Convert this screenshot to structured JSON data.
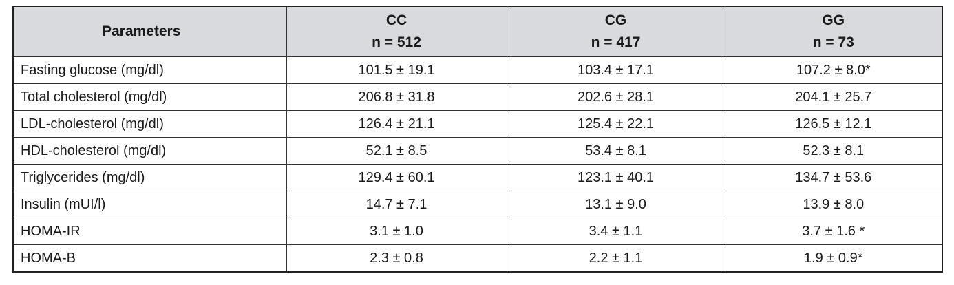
{
  "table": {
    "corner": "Parameters",
    "columns": [
      {
        "name": "CC",
        "n": "n = 512"
      },
      {
        "name": "CG",
        "n": "n = 417"
      },
      {
        "name": "GG",
        "n": "n = 73"
      }
    ],
    "rows": [
      [
        "Fasting glucose (mg/dl)",
        "101.5 ± 19.1",
        "103.4 ± 17.1",
        "107.2 ± 8.0*"
      ],
      [
        "Total cholesterol (mg/dl)",
        "206.8 ± 31.8",
        "202.6 ± 28.1",
        "204.1 ± 25.7"
      ],
      [
        "LDL-cholesterol (mg/dl)",
        "126.4 ± 21.1",
        "125.4 ± 22.1",
        "126.5 ± 12.1"
      ],
      [
        "HDL-cholesterol (mg/dl)",
        "52.1 ± 8.5",
        "53.4 ± 8.1",
        "52.3 ± 8.1"
      ],
      [
        "Triglycerides (mg/dl)",
        "129.4 ± 60.1",
        "123.1 ± 40.1",
        "134.7 ± 53.6"
      ],
      [
        "Insulin (mUI/l)",
        "14.7 ± 7.1",
        "13.1 ± 9.0",
        "13.9 ± 8.0"
      ],
      [
        "HOMA-IR",
        "3.1 ± 1.0",
        "3.4 ± 1.1",
        "3.7 ± 1.6 *"
      ],
      [
        "HOMA-B",
        "2.3 ± 0.8",
        "2.2 ± 1.1",
        "1.9 ± 0.9*"
      ]
    ]
  }
}
